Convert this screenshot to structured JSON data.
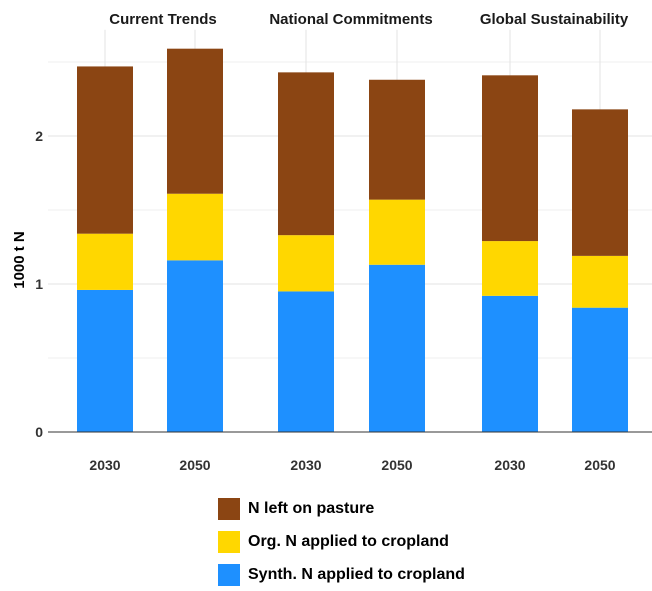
{
  "chart_data": {
    "type": "bar",
    "stacked": true,
    "facets": [
      "Current Trends",
      "National Commitments",
      "Global Sustainability"
    ],
    "categories": [
      "2030",
      "2050"
    ],
    "ylabel": "1000 t N",
    "ylim": [
      0,
      2.65
    ],
    "yticks": [
      "0",
      "1",
      "2"
    ],
    "grid": true,
    "legend_position": "bottom",
    "series": [
      {
        "name": "Synth. N applied to cropland",
        "color": "#1e90ff",
        "values": [
          [
            0.96,
            1.16
          ],
          [
            0.95,
            1.13
          ],
          [
            0.92,
            0.84
          ]
        ]
      },
      {
        "name": "Org. N applied to cropland",
        "color": "#ffd700",
        "values": [
          [
            0.38,
            0.45
          ],
          [
            0.38,
            0.44
          ],
          [
            0.37,
            0.35
          ]
        ]
      },
      {
        "name": "N left on pasture",
        "color": "#8b4513",
        "values": [
          [
            1.13,
            0.98
          ],
          [
            1.1,
            0.81
          ],
          [
            1.12,
            0.99
          ]
        ]
      }
    ],
    "legend_order": [
      "N left on pasture",
      "Org. N applied to cropland",
      "Synth. N applied to cropland"
    ]
  }
}
